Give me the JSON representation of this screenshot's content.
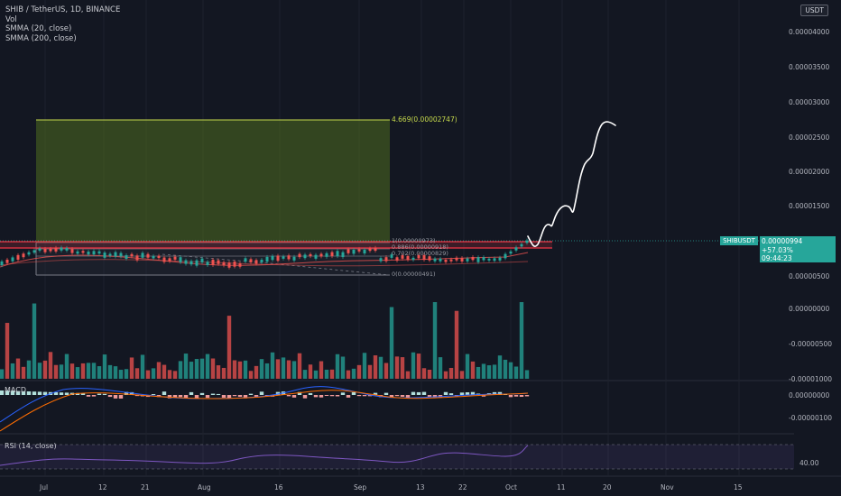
{
  "legend": {
    "symbol": "SHIB / TetherUS, 1D, BINANCE",
    "vol": "Vol",
    "smma20": "SMMA (20, close)",
    "smma200": "SMMA (200, close)",
    "macd": "MACD",
    "rsi": "RSI (14, close)"
  },
  "currency_button": "USDT",
  "price_axis": [
    "0.00004000",
    "0.00003500",
    "0.00003000",
    "0.00002500",
    "0.00002000",
    "0.00001500",
    "0.00000500"
  ],
  "volume_axis": [
    "0.00000000",
    "-0.00000500",
    "-0.00001000"
  ],
  "macd_axis": [
    "0.00000000",
    "-0.00000100"
  ],
  "rsi_axis": [
    "40.00"
  ],
  "time_axis": [
    "Jul",
    "12",
    "21",
    "Aug",
    "16",
    "Sep",
    "13",
    "22",
    "Oct",
    "11",
    "20",
    "Nov",
    "15"
  ],
  "current": {
    "symbol": "SHIBUSDT",
    "price": "0.00000994",
    "change": "+57.03%",
    "countdown": "09:44:23"
  },
  "fib_labels": {
    "top": "4.669(0.00002747)",
    "l1": "1(0.00000973)",
    "l0886": "0.886(0.00000918)",
    "l0702": "0.702(0.00000829)",
    "l0": "0(0.00000491)"
  },
  "colors": {
    "background": "#131722",
    "up": "#26a69a",
    "down": "#ef5350",
    "target_zone": "#4f6b1f",
    "red_zone": "#f23645",
    "rsi_line": "#7e57c2",
    "macd_line": "#2962ff",
    "signal_line": "#ff6d00"
  }
}
